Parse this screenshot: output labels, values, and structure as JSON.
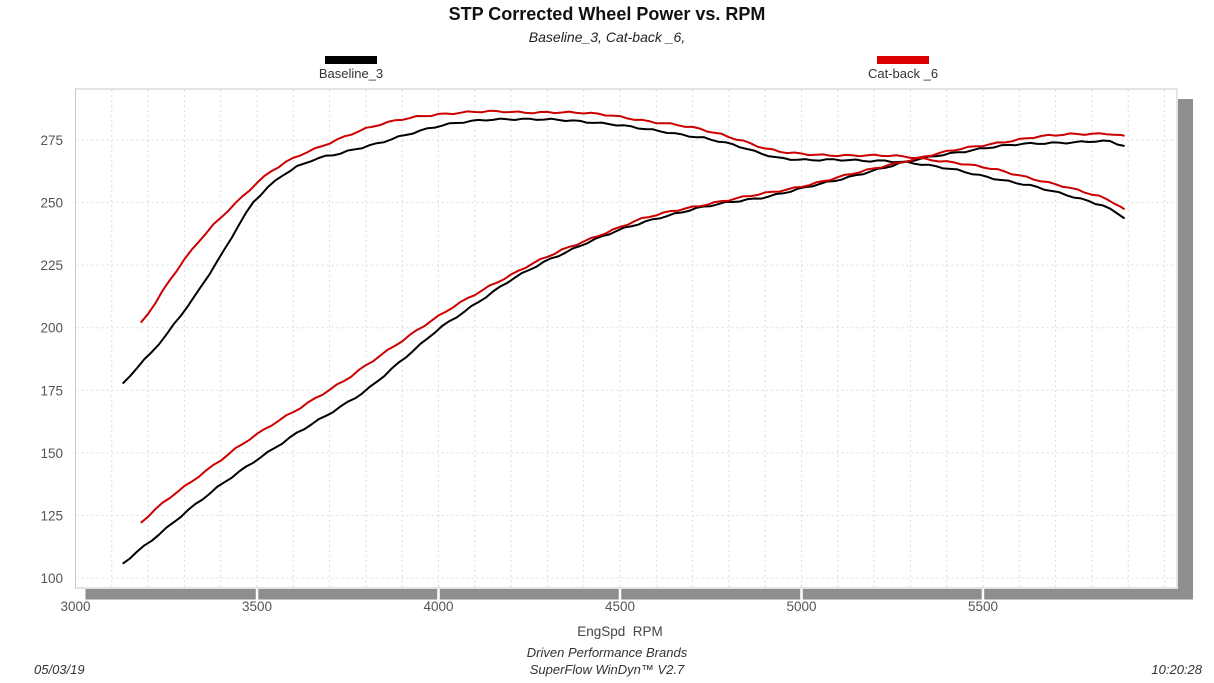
{
  "title": "STP Corrected Wheel Power vs. RPM",
  "subtitle": "Baseline_3, Cat-back _6,",
  "legend": [
    {
      "label": "Baseline_3",
      "color": "#000000"
    },
    {
      "label": "Cat-back _6",
      "color": "#dd0000"
    }
  ],
  "footer": {
    "date": "05/03/19",
    "center_line1": "Driven Performance Brands",
    "center_line2": "SuperFlow WinDyn™  V2.7",
    "time": "10:20:28"
  },
  "chart_data": {
    "type": "line",
    "title": "STP Corrected Wheel Power vs. RPM",
    "subtitle": "Baseline_3, Cat-back _6,",
    "xlabel": "EngSpd  RPM",
    "ylabel": "",
    "xlim": [
      3000,
      6035
    ],
    "ylim": [
      96,
      295
    ],
    "x_ticks": [
      3000,
      3500,
      4000,
      4500,
      5000,
      5500
    ],
    "y_ticks": [
      100,
      125,
      150,
      175,
      200,
      225,
      250,
      275
    ],
    "x_minor_grid_step": 100,
    "y_grid_step": 25,
    "grid": "light-gray dashed, vertical every 100 RPM, horizontal every 25",
    "legend_position": "top, outside plot",
    "colors": {
      "baseline": "#000000",
      "catback": "#cc0000",
      "grid": "#dcdcdc",
      "frame": "#c9c9c9",
      "shadow": "#8e8e8e",
      "tick_text": "#555555"
    },
    "series": [
      {
        "name": "Baseline_3 (upper curve)",
        "color": "#000000",
        "points": [
          [
            3130,
            177.5
          ],
          [
            3170,
            184
          ],
          [
            3210,
            190
          ],
          [
            3250,
            197
          ],
          [
            3290,
            205
          ],
          [
            3330,
            213
          ],
          [
            3370,
            222
          ],
          [
            3410,
            231
          ],
          [
            3450,
            241
          ],
          [
            3490,
            250
          ],
          [
            3530,
            256
          ],
          [
            3570,
            261
          ],
          [
            3610,
            264.5
          ],
          [
            3650,
            267
          ],
          [
            3690,
            268.5
          ],
          [
            3730,
            269.5
          ],
          [
            3780,
            271.5
          ],
          [
            3830,
            273.5
          ],
          [
            3880,
            276
          ],
          [
            3930,
            278
          ],
          [
            3980,
            279.8
          ],
          [
            4030,
            281.2
          ],
          [
            4080,
            282.3
          ],
          [
            4130,
            283.2
          ],
          [
            4180,
            283.5
          ],
          [
            4230,
            283.3
          ],
          [
            4280,
            283.1
          ],
          [
            4330,
            282.9
          ],
          [
            4380,
            282.6
          ],
          [
            4430,
            282.1
          ],
          [
            4480,
            281.4
          ],
          [
            4530,
            280.2
          ],
          [
            4580,
            279
          ],
          [
            4630,
            278
          ],
          [
            4680,
            277
          ],
          [
            4730,
            276
          ],
          [
            4780,
            274.3
          ],
          [
            4830,
            272.2
          ],
          [
            4880,
            269.8
          ],
          [
            4930,
            268
          ],
          [
            4980,
            267.4
          ],
          [
            5030,
            267.1
          ],
          [
            5080,
            267
          ],
          [
            5130,
            266.8
          ],
          [
            5180,
            266.6
          ],
          [
            5230,
            266.8
          ],
          [
            5280,
            266.4
          ],
          [
            5330,
            265.3
          ],
          [
            5380,
            264
          ],
          [
            5430,
            262.8
          ],
          [
            5480,
            261.3
          ],
          [
            5530,
            259.8
          ],
          [
            5580,
            258.3
          ],
          [
            5630,
            256.7
          ],
          [
            5680,
            254.8
          ],
          [
            5730,
            253
          ],
          [
            5780,
            251.2
          ],
          [
            5830,
            249
          ],
          [
            5870,
            245.8
          ],
          [
            5890,
            243.8
          ]
        ]
      },
      {
        "name": "Baseline_3 (lower curve)",
        "color": "#000000",
        "points": [
          [
            3130,
            105.5
          ],
          [
            3200,
            114
          ],
          [
            3300,
            126
          ],
          [
            3400,
            137
          ],
          [
            3500,
            147.5
          ],
          [
            3600,
            157
          ],
          [
            3700,
            165.5
          ],
          [
            3800,
            175
          ],
          [
            3900,
            187
          ],
          [
            3950,
            193
          ],
          [
            4000,
            199.5
          ],
          [
            4100,
            209.5
          ],
          [
            4200,
            219
          ],
          [
            4300,
            227
          ],
          [
            4400,
            233.5
          ],
          [
            4500,
            239
          ],
          [
            4600,
            243.8
          ],
          [
            4700,
            247.3
          ],
          [
            4800,
            250
          ],
          [
            4900,
            252.3
          ],
          [
            5000,
            255.5
          ],
          [
            5100,
            259
          ],
          [
            5200,
            263
          ],
          [
            5300,
            266.5
          ],
          [
            5400,
            269.5
          ],
          [
            5500,
            271.7
          ],
          [
            5600,
            273.2
          ],
          [
            5700,
            274
          ],
          [
            5800,
            274.4
          ],
          [
            5850,
            274.3
          ],
          [
            5890,
            272.4
          ]
        ]
      },
      {
        "name": "Cat-back _6 (upper curve)",
        "color": "#cc0000",
        "points": [
          [
            3180,
            202
          ],
          [
            3220,
            210
          ],
          [
            3260,
            219
          ],
          [
            3300,
            227
          ],
          [
            3340,
            234.5
          ],
          [
            3380,
            241
          ],
          [
            3420,
            247
          ],
          [
            3460,
            252.5
          ],
          [
            3500,
            258
          ],
          [
            3540,
            262.5
          ],
          [
            3580,
            266
          ],
          [
            3620,
            269
          ],
          [
            3660,
            271.5
          ],
          [
            3700,
            274
          ],
          [
            3750,
            277
          ],
          [
            3800,
            279.5
          ],
          [
            3850,
            281.5
          ],
          [
            3900,
            283.2
          ],
          [
            3950,
            284.6
          ],
          [
            4000,
            285.4
          ],
          [
            4060,
            285.9
          ],
          [
            4120,
            286.2
          ],
          [
            4180,
            286.3
          ],
          [
            4240,
            286.1
          ],
          [
            4300,
            286.2
          ],
          [
            4360,
            285.9
          ],
          [
            4420,
            285.5
          ],
          [
            4480,
            284.8
          ],
          [
            4540,
            283.5
          ],
          [
            4600,
            282
          ],
          [
            4660,
            280.8
          ],
          [
            4720,
            279.3
          ],
          [
            4780,
            277.3
          ],
          [
            4840,
            274.7
          ],
          [
            4900,
            271.5
          ],
          [
            4950,
            269.9
          ],
          [
            5000,
            269.4
          ],
          [
            5060,
            269.1
          ],
          [
            5120,
            268.9
          ],
          [
            5180,
            268.7
          ],
          [
            5240,
            268.6
          ],
          [
            5300,
            268.2
          ],
          [
            5360,
            267.2
          ],
          [
            5420,
            266
          ],
          [
            5480,
            264.5
          ],
          [
            5540,
            263
          ],
          [
            5600,
            261
          ],
          [
            5660,
            258.8
          ],
          [
            5720,
            256.5
          ],
          [
            5780,
            254
          ],
          [
            5830,
            252
          ],
          [
            5870,
            249.5
          ],
          [
            5890,
            247.2
          ]
        ]
      },
      {
        "name": "Cat-back _6 (lower curve)",
        "color": "#cc0000",
        "points": [
          [
            3180,
            122
          ],
          [
            3250,
            131
          ],
          [
            3350,
            142
          ],
          [
            3450,
            152.5
          ],
          [
            3550,
            162
          ],
          [
            3650,
            171
          ],
          [
            3750,
            179.5
          ],
          [
            3850,
            190
          ],
          [
            3950,
            200
          ],
          [
            4050,
            209
          ],
          [
            4150,
            217.5
          ],
          [
            4250,
            225
          ],
          [
            4350,
            231.5
          ],
          [
            4450,
            237.5
          ],
          [
            4550,
            243
          ],
          [
            4650,
            246.8
          ],
          [
            4750,
            249.8
          ],
          [
            4850,
            252.3
          ],
          [
            4950,
            255
          ],
          [
            5050,
            258.2
          ],
          [
            5150,
            261.7
          ],
          [
            5250,
            265.5
          ],
          [
            5350,
            268.7
          ],
          [
            5450,
            271.7
          ],
          [
            5550,
            274.2
          ],
          [
            5650,
            276.2
          ],
          [
            5750,
            277.4
          ],
          [
            5850,
            277.7
          ],
          [
            5890,
            276.4
          ]
        ]
      }
    ]
  }
}
